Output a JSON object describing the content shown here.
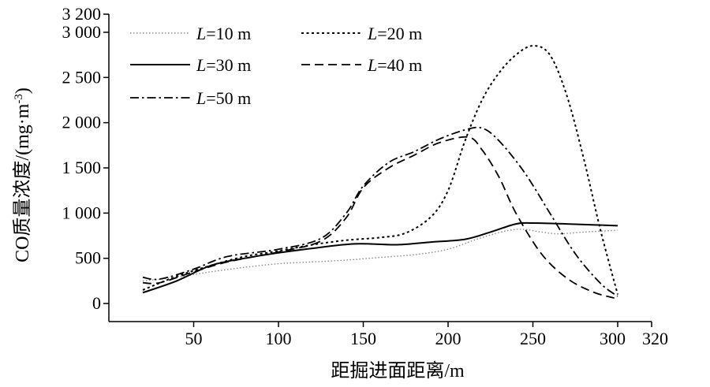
{
  "chart_data": {
    "type": "line",
    "xlabel": "距掘进面距离/m",
    "ylabel": "CO质量浓度/(mg·m⁻³)",
    "ylabel_parts": {
      "main": "CO质量浓度/(mg·m",
      "sup": "-3",
      "close": ")"
    },
    "xlim": [
      0,
      320
    ],
    "ylim": [
      -200,
      3200
    ],
    "x_ticks": [
      {
        "value": 50,
        "label": "50"
      },
      {
        "value": 100,
        "label": "100"
      },
      {
        "value": 150,
        "label": "150"
      },
      {
        "value": 200,
        "label": "200"
      },
      {
        "value": 250,
        "label": "250"
      },
      {
        "value": 300,
        "label": "300"
      },
      {
        "value": 320,
        "label": "320"
      }
    ],
    "y_ticks": [
      {
        "value": 0,
        "label": "0"
      },
      {
        "value": 500,
        "label": "500"
      },
      {
        "value": 1000,
        "label": "1 000"
      },
      {
        "value": 1500,
        "label": "1 500"
      },
      {
        "value": 2000,
        "label": "2 000"
      },
      {
        "value": 2500,
        "label": "2 500"
      },
      {
        "value": 3000,
        "label": "3 000"
      },
      {
        "value": 3200,
        "label": "3 200"
      }
    ],
    "legend_placement": "top-left",
    "series": [
      {
        "name": "L=10 m",
        "dash": "dotted",
        "color": "#888888",
        "x": [
          20,
          40,
          60,
          80,
          100,
          120,
          140,
          160,
          180,
          200,
          220,
          240,
          255,
          265,
          280,
          300
        ],
        "y": [
          250,
          290,
          350,
          400,
          440,
          460,
          480,
          510,
          540,
          600,
          730,
          820,
          790,
          770,
          790,
          810
        ]
      },
      {
        "name": "L=20 m",
        "dash": "short-dash",
        "color": "#000000",
        "x": [
          20,
          40,
          60,
          80,
          100,
          120,
          140,
          160,
          175,
          190,
          200,
          210,
          220,
          230,
          240,
          250,
          260,
          270,
          280,
          290,
          300
        ],
        "y": [
          150,
          300,
          420,
          520,
          580,
          650,
          700,
          730,
          780,
          960,
          1250,
          1800,
          2250,
          2550,
          2750,
          2850,
          2750,
          2300,
          1600,
          800,
          100
        ]
      },
      {
        "name": "L=30 m",
        "dash": "solid",
        "color": "#000000",
        "x": [
          20,
          40,
          60,
          80,
          100,
          120,
          145,
          170,
          190,
          210,
          225,
          240,
          250,
          270,
          285,
          300
        ],
        "y": [
          120,
          250,
          420,
          500,
          560,
          610,
          660,
          650,
          680,
          710,
          790,
          880,
          890,
          880,
          870,
          860
        ]
      },
      {
        "name": "L=40 m",
        "dash": "long-dash",
        "color": "#000000",
        "x": [
          20,
          30,
          50,
          70,
          100,
          125,
          140,
          150,
          165,
          180,
          195,
          212,
          220,
          230,
          240,
          255,
          270,
          285,
          298
        ],
        "y": [
          230,
          230,
          350,
          460,
          570,
          690,
          950,
          1280,
          1500,
          1640,
          1780,
          1840,
          1700,
          1400,
          1000,
          550,
          280,
          130,
          60
        ]
      },
      {
        "name": "L=50 m",
        "dash": "dash-dot",
        "color": "#000000",
        "x": [
          20,
          30,
          50,
          70,
          100,
          125,
          140,
          150,
          165,
          180,
          195,
          210,
          220,
          230,
          245,
          260,
          275,
          290,
          300
        ],
        "y": [
          290,
          270,
          380,
          520,
          600,
          720,
          1000,
          1300,
          1560,
          1680,
          1820,
          1920,
          1940,
          1800,
          1450,
          1000,
          550,
          220,
          80
        ]
      }
    ]
  }
}
